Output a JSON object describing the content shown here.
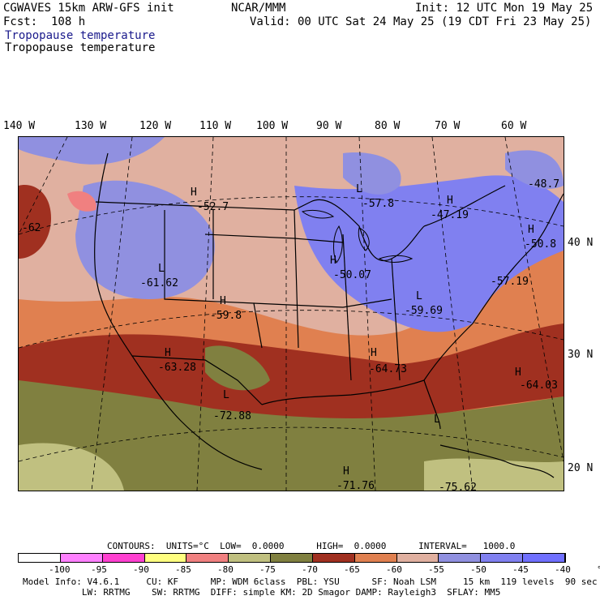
{
  "header": {
    "model": "CGWAVES 15km ARW-GFS init",
    "org": "NCAR/MMM",
    "init": "Init: 12 UTC Mon 19 May 25",
    "fcst": "Fcst:  108 h",
    "valid": "Valid: 00 UTC Sat 24 May 25 (19 CDT Fri 23 May 25)",
    "field1": "Tropopause temperature",
    "field2": "Tropopause temperature"
  },
  "lon_labels": [
    "140 W",
    "130 W",
    "120 W",
    "110 W",
    "100 W",
    "90 W",
    "80 W",
    "70 W",
    "60 W"
  ],
  "lat_labels": [
    "40 N",
    "30 N",
    "20 N"
  ],
  "map_labels": [
    {
      "t": "H",
      "v": "-52.7"
    },
    {
      "t": "L",
      "v": "-57.8"
    },
    {
      "t": "H",
      "v": "-47.19"
    },
    {
      "t": "",
      "v": "-48.7"
    },
    {
      "t": "H",
      "v": "-50.8"
    },
    {
      "t": "",
      "v": "-62"
    },
    {
      "t": "L",
      "v": "-61.62"
    },
    {
      "t": "H",
      "v": "-50.07"
    },
    {
      "t": "",
      "v": "-57.19"
    },
    {
      "t": "H",
      "v": "-59.8"
    },
    {
      "t": "L",
      "v": "-59.69"
    },
    {
      "t": "H",
      "v": "-63.28"
    },
    {
      "t": "H",
      "v": "-64.73"
    },
    {
      "t": "H",
      "v": "-64.03"
    },
    {
      "t": "L",
      "v": "-72.88"
    },
    {
      "t": "H",
      "v": "-71.76"
    },
    {
      "t": "L",
      "v": "-75.62"
    }
  ],
  "contours_line": "CONTOURS:  UNITS=°C  LOW=  0.0000      HIGH=  0.0000      INTERVAL=   1000.0",
  "colorbar": {
    "colors": [
      "#ffffff",
      "#ff80ff",
      "#ff40d0",
      "#ffff80",
      "#f08080",
      "#c0c080",
      "#808040",
      "#a03020",
      "#e08050",
      "#e0b0a0",
      "#9090e0",
      "#8080f0",
      "#7070ff"
    ],
    "labels": [
      "-100",
      "-95",
      "-90",
      "-85",
      "-80",
      "-75",
      "-70",
      "-65",
      "-60",
      "-55",
      "-50",
      "-45",
      "-40",
      "°C"
    ]
  },
  "footer": {
    "line1": "Model Info: V4.6.1     CU: KF      MP: WDM 6class  PBL: YSU      SF: Noah LSM     15 km  119 levels  90 sec",
    "line2": "           LW: RRTMG    SW: RRTMG  DIFF: simple KM: 2D Smagor DAMP: Rayleigh3  SFLAY: MM5"
  }
}
